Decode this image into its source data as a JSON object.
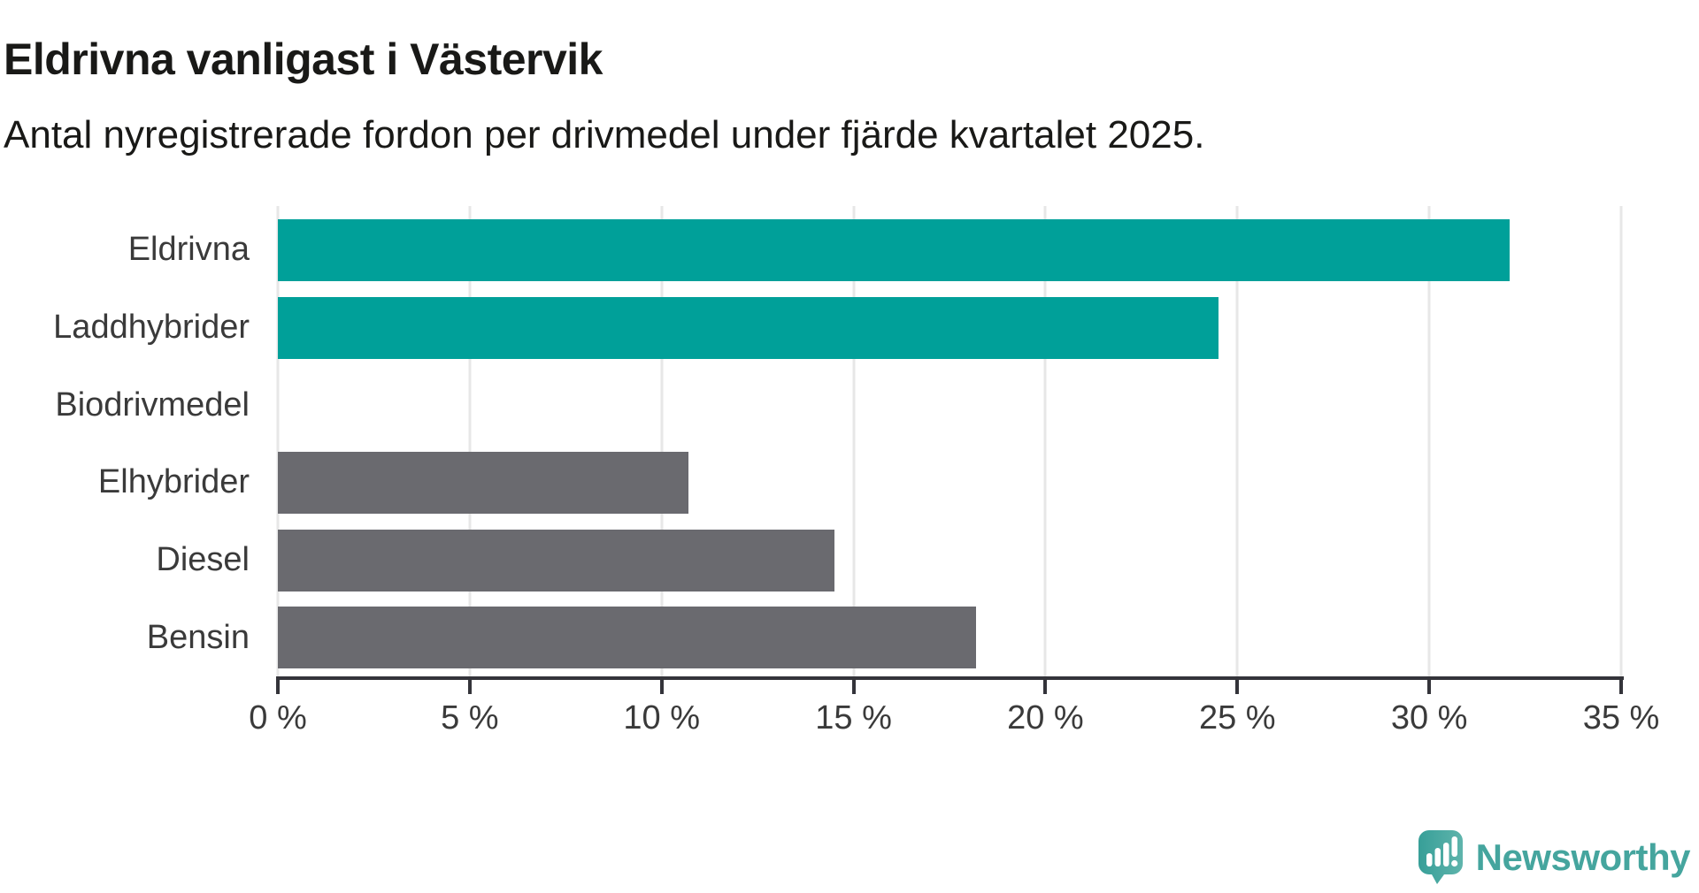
{
  "header": {
    "title": "Eldrivna vanligast i Västervik",
    "subtitle": "Antal nyregistrerade fordon per drivmedel under fjärde kvartalet 2025."
  },
  "chart_data": {
    "type": "bar",
    "orientation": "horizontal",
    "title": "Eldrivna vanligast i Västervik",
    "subtitle": "Antal nyregistrerade fordon per drivmedel under fjärde kvartalet 2025.",
    "categories": [
      "Eldrivna",
      "Laddhybrider",
      "Biodrivmedel",
      "Elhybrider",
      "Diesel",
      "Bensin"
    ],
    "values": [
      32.1,
      24.5,
      0,
      10.7,
      14.5,
      18.2
    ],
    "unit": "%",
    "xlim": [
      0,
      35
    ],
    "x_ticks": [
      0,
      5,
      10,
      15,
      20,
      25,
      30,
      35
    ],
    "x_tick_labels": [
      "0 %",
      "5 %",
      "10 %",
      "15 %",
      "20 %",
      "25 %",
      "30 %",
      "35 %"
    ],
    "bar_colors": [
      "#00a099",
      "#00a099",
      "#6a6a6f",
      "#6a6a6f",
      "#6a6a6f",
      "#6a6a6f"
    ],
    "grid": "vertical",
    "legend": "none"
  },
  "colors": {
    "highlight": "#00a099",
    "default_bar": "#6a6a6f",
    "gridline": "#e7e7e7",
    "axis": "#34343a",
    "text_dark": "#191917",
    "text_label": "#3a3a3a",
    "brand_teal": "#45a59e"
  },
  "footer": {
    "brand": "Newsworthy",
    "logo_icon": "newsworthy-bubble-chart-icon"
  }
}
